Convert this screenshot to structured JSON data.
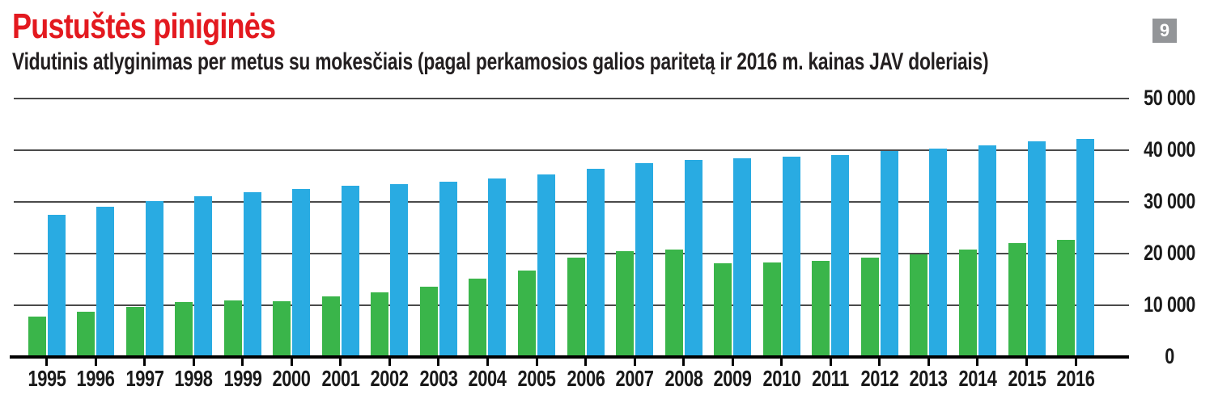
{
  "header": {
    "title": "Pustuštės piniginės",
    "subtitle": "Vidutinis atlyginimas per metus su mokesčiais (pagal perkamosios galios paritetą ir 2016 m. kainas JAV doleriais)",
    "page_badge": "9"
  },
  "colors": {
    "title_red": "#e3191f",
    "text_black": "#231f20",
    "badge_gray": "#939598",
    "grid_gray": "#4a4a4a",
    "bar_green": "#3ab54a",
    "bar_blue": "#29abe2"
  },
  "chart_data": {
    "type": "bar",
    "title": "Pustuštės piniginės",
    "subtitle": "Vidutinis atlyginimas per metus su mokesčiais (pagal perkamosios galios paritetą ir 2016 m. kainas JAV doleriais)",
    "categories": [
      "1995",
      "1996",
      "1997",
      "1998",
      "1999",
      "2000",
      "2001",
      "2002",
      "2003",
      "2004",
      "2005",
      "2006",
      "2007",
      "2008",
      "2009",
      "2010",
      "2011",
      "2012",
      "2013",
      "2014",
      "2015",
      "2016"
    ],
    "series": [
      {
        "name": "green-series",
        "color": "#3ab54a",
        "values": [
          7700,
          8600,
          9500,
          10500,
          10800,
          10700,
          11600,
          12300,
          13500,
          15000,
          16500,
          19000,
          20300,
          20700,
          18000,
          18100,
          18500,
          19000,
          19700,
          20600,
          21900,
          22500
        ]
      },
      {
        "name": "blue-series",
        "color": "#29abe2",
        "values": [
          27300,
          28900,
          30000,
          31000,
          31700,
          32400,
          32900,
          33300,
          33800,
          34400,
          35200,
          36300,
          37300,
          37900,
          38300,
          38600,
          38900,
          39700,
          40100,
          40800,
          41500,
          42100
        ]
      }
    ],
    "xlabel": "",
    "ylabel": "",
    "ylim": [
      0,
      50000
    ],
    "yticks": [
      0,
      10000,
      20000,
      30000,
      40000,
      50000
    ],
    "ytick_labels": [
      "0",
      "10 000",
      "20 000",
      "30 000",
      "40 000",
      "50 000"
    ],
    "grid": true,
    "legend": false,
    "legend_position": "none",
    "yaxis_side": "right"
  }
}
